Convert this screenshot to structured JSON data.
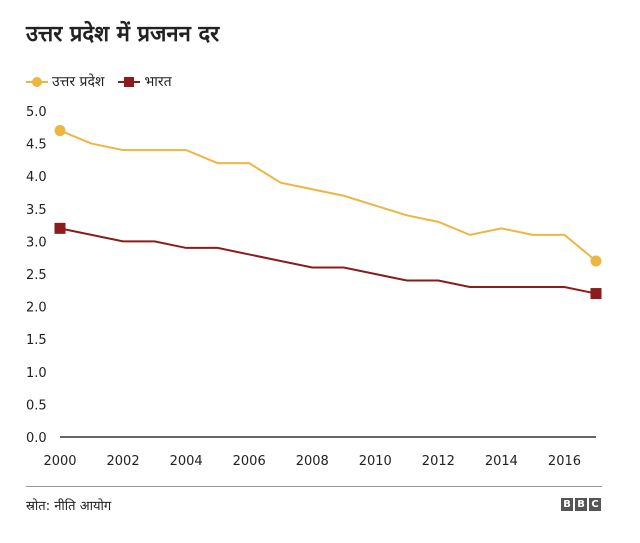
{
  "title": "उत्तर प्रदेश में प्रजनन दर",
  "source": "स्रोत: नीति आयोग",
  "brand": [
    "B",
    "B",
    "C"
  ],
  "legend": [
    {
      "label": "उत्तर प्रदेश",
      "color": "#EDB641",
      "marker": "circle"
    },
    {
      "label": "भारत",
      "color": "#8E1B1B",
      "marker": "square"
    }
  ],
  "chart_data": {
    "type": "line",
    "x": [
      2000,
      2001,
      2002,
      2003,
      2004,
      2005,
      2006,
      2007,
      2008,
      2009,
      2010,
      2011,
      2012,
      2013,
      2014,
      2015,
      2016,
      2017
    ],
    "series": [
      {
        "name": "उत्तर प्रदेश",
        "color": "#EDB641",
        "marker": "circle",
        "values": [
          4.7,
          4.5,
          4.4,
          4.4,
          4.4,
          4.2,
          4.2,
          3.9,
          3.8,
          3.7,
          3.55,
          3.4,
          3.3,
          3.1,
          3.2,
          3.1,
          3.1,
          2.7
        ]
      },
      {
        "name": "भारत",
        "color": "#8E1B1B",
        "marker": "square",
        "values": [
          3.2,
          3.1,
          3.0,
          3.0,
          2.9,
          2.9,
          2.8,
          2.7,
          2.6,
          2.6,
          2.5,
          2.4,
          2.4,
          2.3,
          2.3,
          2.3,
          2.3,
          2.2
        ]
      }
    ],
    "x_ticks": [
      "2000",
      "2002",
      "2004",
      "2006",
      "2008",
      "2010",
      "2012",
      "2014",
      "2016"
    ],
    "x_tick_values": [
      2000,
      2002,
      2004,
      2006,
      2008,
      2010,
      2012,
      2014,
      2016
    ],
    "y_ticks": [
      "0.0",
      "0.5",
      "1.0",
      "1.5",
      "2.0",
      "2.5",
      "3.0",
      "3.5",
      "4.0",
      "4.5",
      "5.0"
    ],
    "y_tick_values": [
      0,
      0.5,
      1,
      1.5,
      2,
      2.5,
      3,
      3.5,
      4,
      4.5,
      5
    ],
    "xlim": [
      2000,
      2017
    ],
    "ylim": [
      0,
      5
    ],
    "title": "उत्तर प्रदेश में प्रजनन दर",
    "xlabel": "",
    "ylabel": "",
    "grid": false,
    "legend_position": "top-left"
  }
}
